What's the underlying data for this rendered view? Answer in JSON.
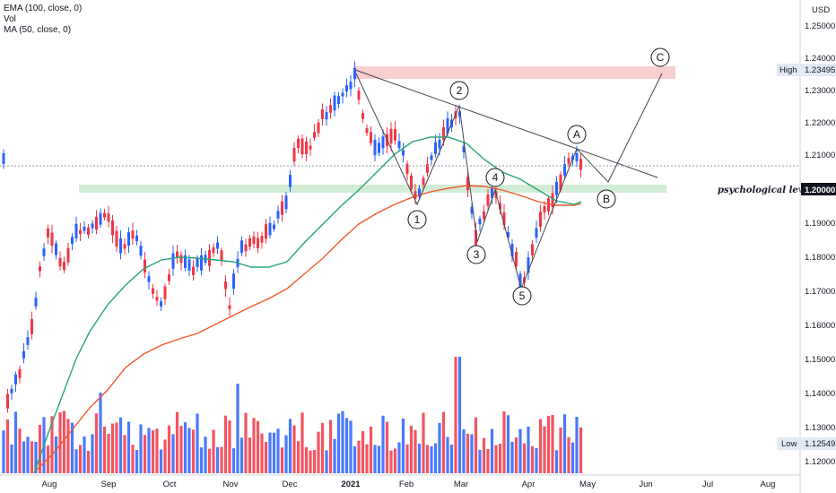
{
  "legend": {
    "ema": "EMA (100, close, 0)",
    "vol": "Vol",
    "ma": "MA (50, close, 0)"
  },
  "axis": {
    "currency": "USD",
    "y_ticks": [
      "1.25000",
      "1.24000",
      "1.23000",
      "1.22000",
      "1.21000",
      "1.20000",
      "1.19000",
      "1.18000",
      "1.17000",
      "1.16000",
      "1.15000",
      "1.14000",
      "1.13000",
      "1.12000"
    ],
    "x_ticks": [
      "Aug",
      "Sep",
      "Oct",
      "Nov",
      "Dec",
      "2021",
      "Feb",
      "Mar",
      "Apr",
      "May",
      "Jun",
      "Jul",
      "Aug"
    ]
  },
  "badges": {
    "high_label": "High",
    "high_value": "1.23495",
    "level_value": "1.20000",
    "low_label": "Low",
    "low_value": "1.12549"
  },
  "annotations": {
    "psychological": "psychological level",
    "waves": [
      "1",
      "2",
      "3",
      "4",
      "5",
      "A",
      "B",
      "C"
    ]
  },
  "colors": {
    "up": "#2962ff",
    "down": "#f23645",
    "vol_up": "#2962ff",
    "vol_down": "#f23645",
    "ema": "#f0582b",
    "ma": "#27a578",
    "resistance_zone": "#f7c6c6",
    "support_zone": "#cdebd2",
    "trendline": "#434651"
  }
}
